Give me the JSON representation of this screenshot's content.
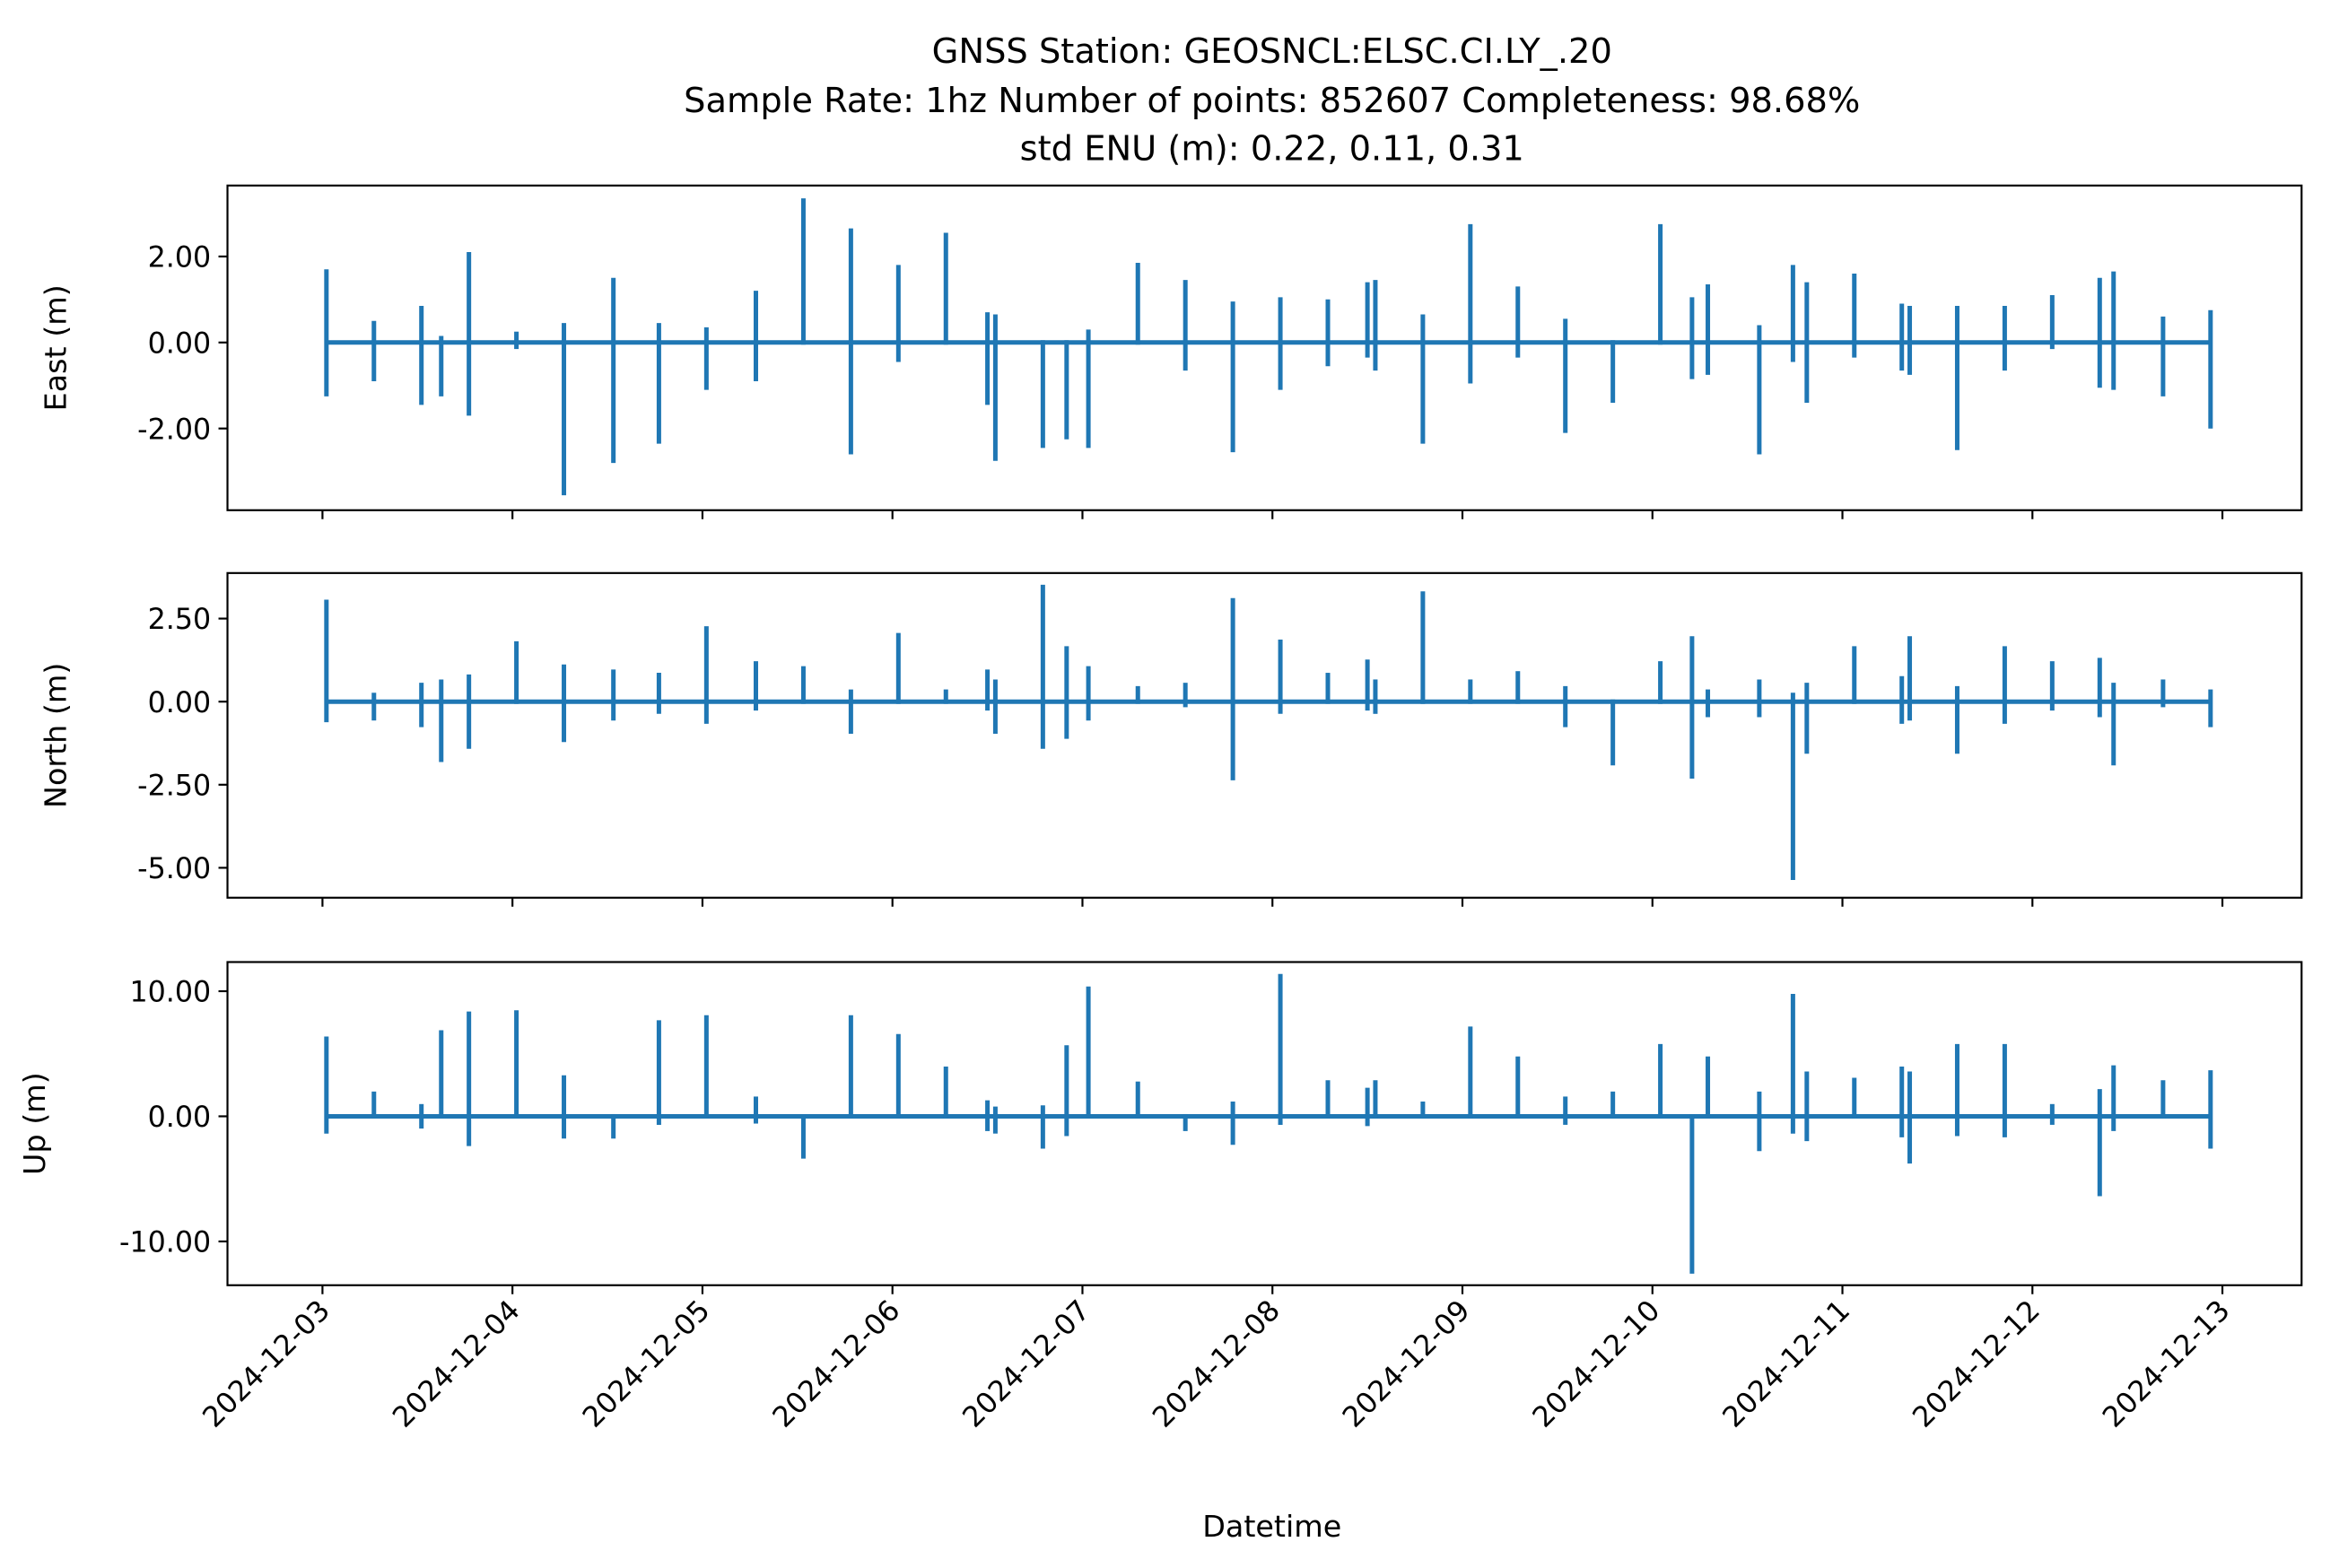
{
  "chart_data": {
    "type": "line",
    "title": "GNSS Station: GEOSNCL:ELSC.CI.LY_.20",
    "subtitle": [
      "Sample Rate: 1hz   Number of points: 852607    Completeness:  98.68%",
      "std ENU (m):  0.22, 0.11, 0.31"
    ],
    "xlabel": "Datetime",
    "color": "#1f77b4",
    "xlim": [
      "2024-12-02T12:00",
      "2024-12-13T10:00"
    ],
    "xticks": [
      "2024-12-03",
      "2024-12-04",
      "2024-12-05",
      "2024-12-06",
      "2024-12-07",
      "2024-12-08",
      "2024-12-09",
      "2024-12-10",
      "2024-12-11",
      "2024-12-12",
      "2024-12-13"
    ],
    "x": [
      "2024-12-03T00:30",
      "2024-12-03T06:30",
      "2024-12-03T12:30",
      "2024-12-03T15:00",
      "2024-12-03T18:30",
      "2024-12-04T00:30",
      "2024-12-04T06:30",
      "2024-12-04T12:45",
      "2024-12-04T18:30",
      "2024-12-05T00:30",
      "2024-12-05T06:45",
      "2024-12-05T12:45",
      "2024-12-05T18:45",
      "2024-12-06T00:45",
      "2024-12-06T06:45",
      "2024-12-06T12:00",
      "2024-12-06T13:00",
      "2024-12-06T19:00",
      "2024-12-06T22:00",
      "2024-12-07T00:45",
      "2024-12-07T07:00",
      "2024-12-07T13:00",
      "2024-12-07T19:00",
      "2024-12-08T01:00",
      "2024-12-08T07:00",
      "2024-12-08T12:00",
      "2024-12-08T13:00",
      "2024-12-08T19:00",
      "2024-12-09T01:00",
      "2024-12-09T07:00",
      "2024-12-09T13:00",
      "2024-12-09T19:00",
      "2024-12-10T01:00",
      "2024-12-10T05:00",
      "2024-12-10T07:00",
      "2024-12-10T13:30",
      "2024-12-10T17:45",
      "2024-12-10T19:30",
      "2024-12-11T01:30",
      "2024-12-11T07:30",
      "2024-12-11T08:30",
      "2024-12-11T14:30",
      "2024-12-11T20:30",
      "2024-12-12T02:30",
      "2024-12-12T08:30",
      "2024-12-12T10:15",
      "2024-12-12T16:30",
      "2024-12-12T22:30"
    ],
    "panels": [
      {
        "ylabel": "East (m)",
        "ylim": [
          -3.9,
          3.65
        ],
        "yticks": [
          {
            "value": 2,
            "label": "2.00"
          },
          {
            "value": 0,
            "label": "0.00"
          },
          {
            "value": -2,
            "label": "-2.00"
          }
        ],
        "high": [
          1.65,
          0.45,
          0.8,
          0.1,
          2.05,
          0.2,
          0.4,
          1.45,
          0.4,
          0.3,
          1.15,
          3.3,
          2.6,
          1.75,
          2.5,
          0.65,
          0.6,
          0,
          0,
          0.25,
          1.8,
          1.4,
          0.9,
          1.0,
          0.95,
          1.35,
          1.4,
          0.6,
          2.7,
          1.25,
          0.5,
          0,
          2.7,
          1.0,
          1.3,
          0.35,
          1.75,
          1.35,
          1.55,
          0.85,
          0.8,
          0.8,
          0.8,
          1.05,
          1.45,
          1.6,
          0.55,
          0.7
        ],
        "low": [
          -1.2,
          -0.85,
          -1.4,
          -1.2,
          -1.65,
          -0.1,
          -3.5,
          -2.75,
          -2.3,
          -1.05,
          -0.85,
          0,
          -2.55,
          -0.4,
          0,
          -1.4,
          -2.7,
          -2.4,
          -2.2,
          -2.4,
          0,
          -0.6,
          -2.5,
          -1.05,
          -0.5,
          -0.3,
          -0.6,
          -2.3,
          -0.9,
          -0.3,
          -2.05,
          -1.35,
          0,
          -0.8,
          -0.7,
          -2.55,
          -0.4,
          -1.35,
          -0.3,
          -0.6,
          -0.7,
          -2.45,
          -0.6,
          -0.1,
          -1.0,
          -1.05,
          -1.2,
          -1.95
        ]
      },
      {
        "ylabel": "North (m)",
        "ylim": [
          -5.9,
          3.87
        ],
        "yticks": [
          {
            "value": 2.5,
            "label": "2.50"
          },
          {
            "value": 0,
            "label": "0.00"
          },
          {
            "value": -2.5,
            "label": "-2.50"
          },
          {
            "value": -5,
            "label": "-5.00"
          }
        ],
        "high": [
          3.0,
          0.2,
          0.5,
          0.6,
          0.75,
          1.75,
          1.05,
          0.9,
          0.8,
          2.2,
          1.15,
          1.0,
          0.3,
          2.0,
          0.3,
          0.9,
          0.6,
          3.45,
          1.6,
          1.0,
          0.4,
          0.5,
          3.05,
          1.8,
          0.8,
          1.2,
          0.6,
          3.25,
          0.6,
          0.85,
          0.4,
          0,
          1.15,
          1.9,
          0.3,
          0.6,
          0.2,
          0.5,
          1.6,
          0.7,
          1.9,
          0.4,
          1.6,
          1.15,
          1.25,
          0.5,
          0.6,
          0.3
        ],
        "low": [
          -0.55,
          -0.5,
          -0.7,
          -1.75,
          -1.35,
          0,
          -1.15,
          -0.5,
          -0.3,
          -0.6,
          -0.2,
          0,
          -0.9,
          0,
          0,
          -0.2,
          -0.9,
          -1.35,
          -1.05,
          -0.5,
          0,
          -0.1,
          -2.3,
          -0.3,
          0,
          -0.2,
          -0.3,
          0,
          0,
          0,
          -0.7,
          -1.85,
          0,
          -2.25,
          -0.4,
          -0.4,
          -5.3,
          -1.5,
          0,
          -0.6,
          -0.5,
          -1.5,
          -0.6,
          -0.2,
          -0.4,
          -1.85,
          -0.1,
          -0.7
        ]
      },
      {
        "ylabel": "Up (m)",
        "ylim": [
          -13.5,
          12.33
        ],
        "yticks": [
          {
            "value": 10,
            "label": "10.00"
          },
          {
            "value": 0,
            "label": "0.00"
          },
          {
            "value": -10,
            "label": "-10.00"
          }
        ],
        "high": [
          6.2,
          1.8,
          0.8,
          6.7,
          8.2,
          8.3,
          3.1,
          0,
          7.5,
          7.9,
          1.4,
          0,
          7.9,
          6.4,
          3.8,
          1.1,
          0.6,
          0.7,
          5.5,
          10.2,
          2.6,
          0,
          1.0,
          11.2,
          2.7,
          2.1,
          2.7,
          1.0,
          7.0,
          4.6,
          1.4,
          1.8,
          5.6,
          0,
          4.6,
          1.8,
          9.6,
          3.4,
          2.9,
          3.8,
          3.4,
          5.6,
          5.6,
          0.8,
          2.0,
          3.9,
          2.7,
          3.5
        ],
        "low": [
          -1.2,
          0,
          -0.8,
          0,
          -2.2,
          0,
          -1.6,
          -1.6,
          -0.5,
          0,
          -0.4,
          -3.2,
          0,
          0,
          0,
          -1.0,
          -1.2,
          -2.4,
          -1.4,
          0,
          0,
          -1.0,
          -2.1,
          -0.5,
          0,
          -0.6,
          0,
          0,
          0,
          0,
          -0.5,
          0,
          0,
          -12.4,
          0,
          -2.6,
          -1.2,
          -1.8,
          0,
          -1.5,
          -3.6,
          -1.4,
          -1.5,
          -0.5,
          -6.2,
          -1.0,
          0,
          -2.4
        ]
      }
    ]
  }
}
